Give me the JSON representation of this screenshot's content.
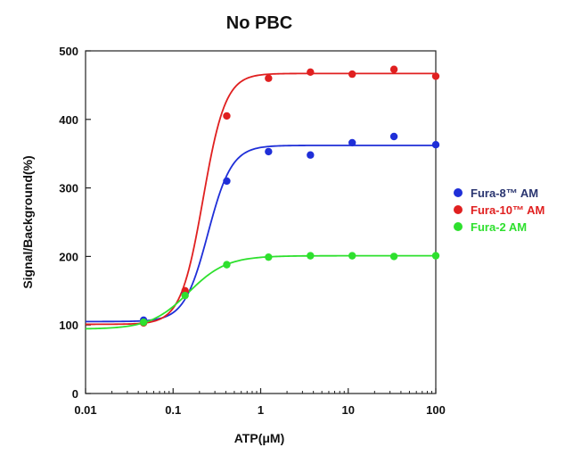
{
  "chart_data": {
    "type": "scatter",
    "title": "No PBC",
    "xlabel": "ATP(μM)",
    "ylabel": "Signal/Background(%)",
    "xscale": "log",
    "xlim": [
      0.01,
      100
    ],
    "ylim": [
      0,
      500
    ],
    "x_ticks": [
      0.01,
      0.1,
      1,
      10,
      100
    ],
    "x_tick_labels": [
      "0.01",
      "0.1",
      "1",
      "10",
      "100"
    ],
    "y_ticks": [
      0,
      100,
      200,
      300,
      400,
      500
    ],
    "y_tick_labels": [
      "0",
      "100",
      "200",
      "300",
      "400",
      "500"
    ],
    "grid": false,
    "legend_position": "right",
    "series": [
      {
        "name": "Fura-8™ AM",
        "color": "#1f2fd8",
        "label_color": "#2a3570",
        "x": [
          0.046,
          0.137,
          0.41,
          1.23,
          3.7,
          11.1,
          33.3,
          100
        ],
        "y": [
          107,
          148,
          310,
          353,
          348,
          366,
          375,
          363
        ],
        "fit": {
          "bottom": 105,
          "top": 362,
          "ec50": 0.25,
          "hill": 3.2
        }
      },
      {
        "name": "Fura-10™ AM",
        "color": "#e02020",
        "label_color": "#e02020",
        "x": [
          0.046,
          0.137,
          0.41,
          1.23,
          3.7,
          11.1,
          33.3,
          100
        ],
        "y": [
          103,
          150,
          405,
          460,
          469,
          466,
          473,
          463
        ],
        "fit": {
          "bottom": 101,
          "top": 467,
          "ec50": 0.22,
          "hill": 3.4
        }
      },
      {
        "name": "Fura-2 AM",
        "color": "#2ee02e",
        "label_color": "#2ee02e",
        "x": [
          0.046,
          0.137,
          0.41,
          1.23,
          3.7,
          11.1,
          33.3,
          100
        ],
        "y": [
          104,
          143,
          188,
          199,
          201,
          201,
          200,
          201
        ],
        "fit": {
          "bottom": 94,
          "top": 201,
          "ec50": 0.15,
          "hill": 2.0
        }
      }
    ]
  }
}
